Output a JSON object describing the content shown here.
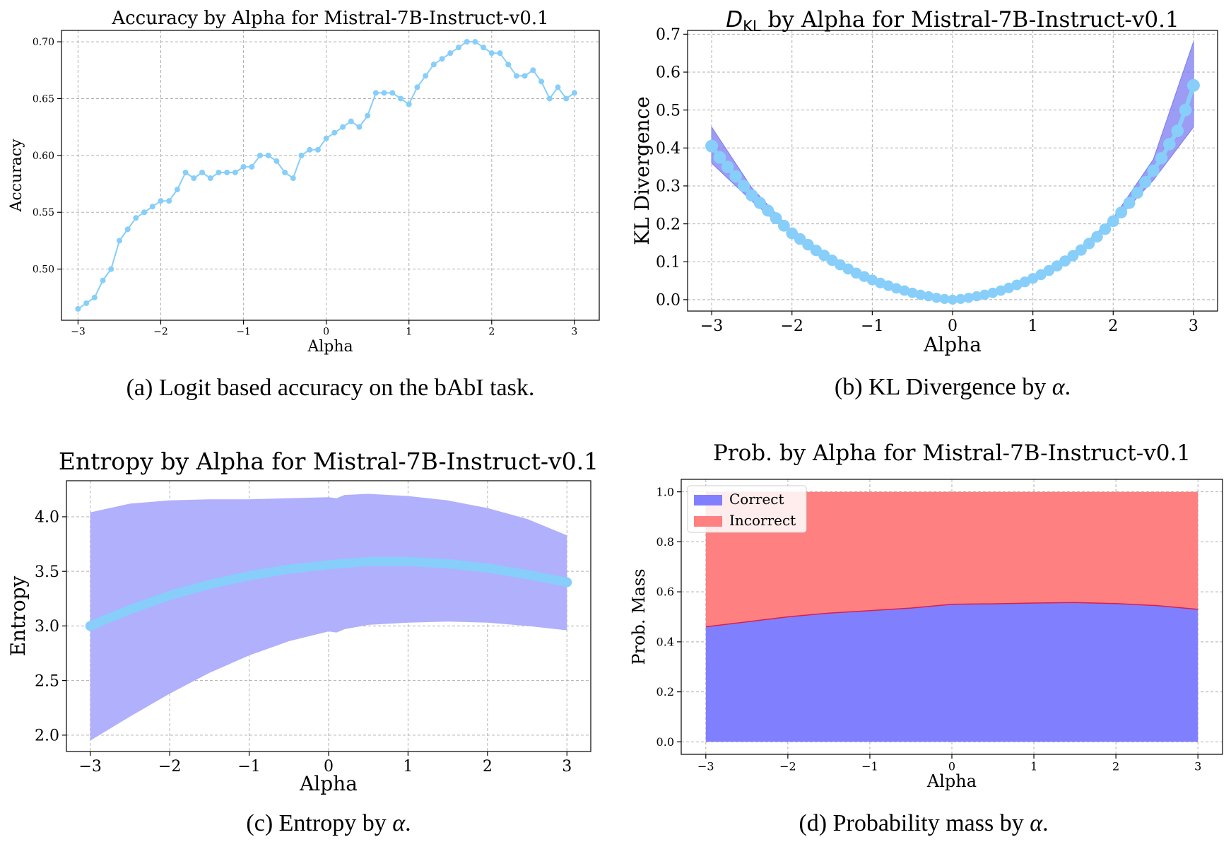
{
  "chart_data": [
    {
      "type": "line",
      "title": "Accuracy by Alpha for Mistral-7B-Instruct-v0.1",
      "xlabel": "Alpha",
      "ylabel": "Accuracy",
      "caption": "(a) Logit based accuracy on the bAbI task.",
      "xlim": [
        -3.2,
        3.3
      ],
      "ylim": [
        0.455,
        0.71
      ],
      "xticks": [
        -3,
        -2,
        -1,
        0,
        1,
        2,
        3
      ],
      "xtick_labels": [
        "−3",
        "−2",
        "−1",
        "0",
        "1",
        "2",
        "3"
      ],
      "yticks": [
        0.5,
        0.55,
        0.6,
        0.65,
        0.7
      ],
      "ytick_labels": [
        "0.50",
        "0.55",
        "0.60",
        "0.65",
        "0.70"
      ],
      "grid": true,
      "color": "#87cefa",
      "series": [
        {
          "x": [
            -3.0,
            -2.9,
            -2.8,
            -2.7,
            -2.6,
            -2.5,
            -2.4,
            -2.3,
            -2.2,
            -2.1,
            -2.0,
            -1.9,
            -1.8,
            -1.7,
            -1.6,
            -1.5,
            -1.4,
            -1.3,
            -1.2,
            -1.1,
            -1.0,
            -0.9,
            -0.8,
            -0.7,
            -0.6,
            -0.5,
            -0.4,
            -0.3,
            -0.2,
            -0.1,
            0.0,
            0.1,
            0.2,
            0.3,
            0.4,
            0.5,
            0.6,
            0.7,
            0.8,
            0.9,
            1.0,
            1.1,
            1.2,
            1.3,
            1.4,
            1.5,
            1.6,
            1.7,
            1.8,
            1.9,
            2.0,
            2.1,
            2.2,
            2.3,
            2.4,
            2.5,
            2.6,
            2.7,
            2.8,
            2.9,
            3.0
          ],
          "y": [
            0.465,
            0.47,
            0.475,
            0.49,
            0.5,
            0.525,
            0.535,
            0.545,
            0.55,
            0.555,
            0.56,
            0.56,
            0.57,
            0.585,
            0.58,
            0.585,
            0.58,
            0.585,
            0.585,
            0.585,
            0.59,
            0.59,
            0.6,
            0.6,
            0.595,
            0.585,
            0.58,
            0.6,
            0.605,
            0.605,
            0.615,
            0.62,
            0.625,
            0.63,
            0.625,
            0.635,
            0.655,
            0.655,
            0.655,
            0.65,
            0.645,
            0.66,
            0.67,
            0.68,
            0.685,
            0.69,
            0.695,
            0.7,
            0.7,
            0.695,
            0.69,
            0.69,
            0.68,
            0.67,
            0.67,
            0.675,
            0.665,
            0.65,
            0.66,
            0.65,
            0.655
          ]
        }
      ]
    },
    {
      "type": "scatter",
      "title_symbol": "D",
      "title_subscript": "KL",
      "title_rest": " by Alpha for Mistral-7B-Instruct-v0.1",
      "xlabel": "Alpha",
      "ylabel": "KL Divergence",
      "caption_prefix": "(b) KL Divergence by ",
      "caption_symbol": "α",
      "caption_suffix": ".",
      "xlim": [
        -3.3,
        3.3
      ],
      "ylim": [
        -0.03,
        0.71
      ],
      "xticks": [
        -3,
        -2,
        -1,
        0,
        1,
        2,
        3
      ],
      "xtick_labels": [
        "−3",
        "−2",
        "−1",
        "0",
        "1",
        "2",
        "3"
      ],
      "yticks": [
        0.0,
        0.1,
        0.2,
        0.3,
        0.4,
        0.5,
        0.6,
        0.7
      ],
      "ytick_labels": [
        "0.0",
        "0.1",
        "0.2",
        "0.3",
        "0.4",
        "0.5",
        "0.6",
        "0.7"
      ],
      "grid": true,
      "point_color": "#87cefa",
      "band_color": "#7b7bf0",
      "x": [
        -3.0,
        -2.9,
        -2.8,
        -2.7,
        -2.6,
        -2.5,
        -2.4,
        -2.3,
        -2.2,
        -2.1,
        -2.0,
        -1.9,
        -1.8,
        -1.7,
        -1.6,
        -1.5,
        -1.4,
        -1.3,
        -1.2,
        -1.1,
        -1.0,
        -0.9,
        -0.8,
        -0.7,
        -0.6,
        -0.5,
        -0.4,
        -0.3,
        -0.2,
        -0.1,
        0.0,
        0.1,
        0.2,
        0.3,
        0.4,
        0.5,
        0.6,
        0.7,
        0.8,
        0.9,
        1.0,
        1.1,
        1.2,
        1.3,
        1.4,
        1.5,
        1.6,
        1.7,
        1.8,
        1.9,
        2.0,
        2.1,
        2.2,
        2.3,
        2.4,
        2.5,
        2.6,
        2.7,
        2.8,
        2.9,
        3.0
      ],
      "y": [
        0.405,
        0.375,
        0.35,
        0.325,
        0.3,
        0.275,
        0.255,
        0.235,
        0.215,
        0.195,
        0.175,
        0.16,
        0.145,
        0.13,
        0.117,
        0.104,
        0.092,
        0.081,
        0.07,
        0.061,
        0.052,
        0.044,
        0.037,
        0.03,
        0.024,
        0.018,
        0.013,
        0.009,
        0.005,
        0.002,
        0.0,
        0.002,
        0.005,
        0.009,
        0.013,
        0.018,
        0.024,
        0.031,
        0.039,
        0.047,
        0.056,
        0.066,
        0.077,
        0.089,
        0.102,
        0.116,
        0.131,
        0.148,
        0.166,
        0.186,
        0.207,
        0.23,
        0.255,
        0.282,
        0.31,
        0.34,
        0.373,
        0.41,
        0.445,
        0.5,
        0.565
      ],
      "band": {
        "x": [
          -3.0,
          -2.5,
          -2.0,
          -1.5,
          -1.0,
          -0.5,
          0.0,
          0.5,
          1.0,
          1.5,
          2.0,
          2.5,
          3.0
        ],
        "lower": [
          0.36,
          0.26,
          0.17,
          0.102,
          0.051,
          0.017,
          0.0,
          0.017,
          0.055,
          0.114,
          0.2,
          0.315,
          0.455
        ],
        "upper": [
          0.455,
          0.295,
          0.182,
          0.107,
          0.053,
          0.019,
          0.0,
          0.019,
          0.058,
          0.12,
          0.215,
          0.37,
          0.68
        ]
      }
    },
    {
      "type": "line",
      "title": "Entropy by Alpha for Mistral-7B-Instruct-v0.1",
      "xlabel": "Alpha",
      "ylabel": "Entropy",
      "caption_prefix": "(c) Entropy by ",
      "caption_symbol": "α",
      "caption_suffix": ".",
      "xlim": [
        -3.3,
        3.3
      ],
      "ylim": [
        1.85,
        4.33
      ],
      "xticks": [
        -3,
        -2,
        -1,
        0,
        1,
        2,
        3
      ],
      "xtick_labels": [
        "−3",
        "−2",
        "−1",
        "0",
        "1",
        "2",
        "3"
      ],
      "yticks": [
        2.0,
        2.5,
        3.0,
        3.5,
        4.0
      ],
      "ytick_labels": [
        "2.0",
        "2.5",
        "3.0",
        "3.5",
        "4.0"
      ],
      "grid": true,
      "line_color": "#87cefa",
      "band_color": "#b0b0fc",
      "x": [
        -3.0,
        -2.5,
        -2.0,
        -1.5,
        -1.0,
        -0.5,
        0.0,
        0.5,
        1.0,
        1.5,
        2.0,
        2.5,
        3.0
      ],
      "y": [
        3.0,
        3.15,
        3.28,
        3.38,
        3.46,
        3.52,
        3.56,
        3.59,
        3.59,
        3.57,
        3.53,
        3.47,
        3.4
      ],
      "band": {
        "x": [
          -3.0,
          -2.5,
          -2.0,
          -1.5,
          -1.0,
          -0.5,
          0.0,
          0.1,
          0.2,
          0.5,
          1.0,
          1.5,
          2.0,
          2.5,
          3.0
        ],
        "lower": [
          1.95,
          2.17,
          2.38,
          2.57,
          2.73,
          2.86,
          2.95,
          2.94,
          2.97,
          3.01,
          3.03,
          3.04,
          3.03,
          3.0,
          2.96
        ],
        "upper": [
          4.04,
          4.12,
          4.15,
          4.16,
          4.16,
          4.17,
          4.18,
          4.17,
          4.2,
          4.21,
          4.19,
          4.15,
          4.08,
          3.98,
          3.83
        ]
      }
    },
    {
      "type": "area",
      "title": "Prob. by Alpha for Mistral-7B-Instruct-v0.1",
      "xlabel": "Alpha",
      "ylabel": "Prob. Mass",
      "caption_prefix": "(d) Probability mass by ",
      "caption_symbol": "α",
      "caption_suffix": ".",
      "xlim": [
        -3.3,
        3.3
      ],
      "ylim": [
        -0.05,
        1.05
      ],
      "xticks": [
        -3,
        -2,
        -1,
        0,
        1,
        2,
        3
      ],
      "xtick_labels": [
        "−3",
        "−2",
        "−1",
        "0",
        "1",
        "2",
        "3"
      ],
      "yticks": [
        0.0,
        0.2,
        0.4,
        0.6,
        0.8,
        1.0
      ],
      "ytick_labels": [
        "0.0",
        "0.2",
        "0.4",
        "0.6",
        "0.8",
        "1.0"
      ],
      "grid": true,
      "legend_position": "top-left",
      "x": [
        -3.0,
        -2.5,
        -2.0,
        -1.5,
        -1.0,
        -0.5,
        0.0,
        0.5,
        1.0,
        1.5,
        2.0,
        2.5,
        3.0
      ],
      "series": [
        {
          "name": "Correct",
          "color": "#8080ff",
          "values": [
            0.46,
            0.48,
            0.5,
            0.515,
            0.525,
            0.535,
            0.55,
            0.552,
            0.555,
            0.557,
            0.553,
            0.545,
            0.53
          ]
        },
        {
          "name": "Incorrect",
          "color": "#ff8080",
          "values": [
            0.54,
            0.52,
            0.5,
            0.485,
            0.475,
            0.465,
            0.45,
            0.448,
            0.445,
            0.443,
            0.447,
            0.455,
            0.47
          ]
        }
      ]
    }
  ]
}
